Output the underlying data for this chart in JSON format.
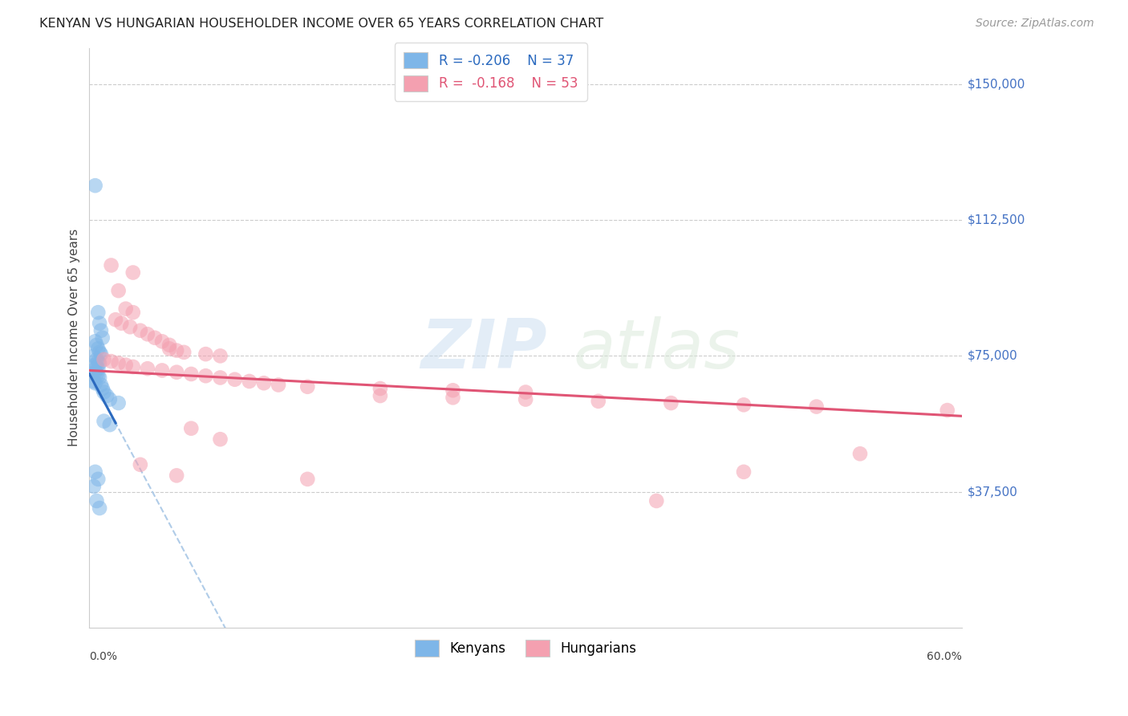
{
  "title": "KENYAN VS HUNGARIAN HOUSEHOLDER INCOME OVER 65 YEARS CORRELATION CHART",
  "source": "Source: ZipAtlas.com",
  "ylabel": "Householder Income Over 65 years",
  "xlim": [
    0.0,
    0.6
  ],
  "ylim": [
    0,
    160000
  ],
  "ytick_vals": [
    37500,
    75000,
    112500,
    150000
  ],
  "ytick_labels": [
    "$37,500",
    "$75,000",
    "$112,500",
    "$150,000"
  ],
  "kenyan_R": "-0.206",
  "kenyan_N": "37",
  "hungarian_R": "-0.168",
  "hungarian_N": "53",
  "kenyan_color": "#7eb6e8",
  "hungarian_color": "#f4a0b0",
  "kenyan_line_color": "#2b6abf",
  "hungarian_line_color": "#e05575",
  "kenyan_dashed_color": "#b0cce8",
  "bg_color": "#ffffff",
  "watermark_text": "ZIPatlas",
  "kenyan_points": [
    [
      0.004,
      122000
    ],
    [
      0.006,
      87000
    ],
    [
      0.007,
      84000
    ],
    [
      0.008,
      82000
    ],
    [
      0.009,
      80000
    ],
    [
      0.004,
      79000
    ],
    [
      0.005,
      78000
    ],
    [
      0.006,
      77000
    ],
    [
      0.007,
      76000
    ],
    [
      0.008,
      75500
    ],
    [
      0.003,
      75000
    ],
    [
      0.005,
      74000
    ],
    [
      0.006,
      73500
    ],
    [
      0.007,
      73000
    ],
    [
      0.004,
      72500
    ],
    [
      0.005,
      72000
    ],
    [
      0.006,
      71500
    ],
    [
      0.003,
      71000
    ],
    [
      0.004,
      70500
    ],
    [
      0.005,
      70000
    ],
    [
      0.006,
      69500
    ],
    [
      0.007,
      69000
    ],
    [
      0.003,
      68000
    ],
    [
      0.004,
      67500
    ],
    [
      0.008,
      67000
    ],
    [
      0.009,
      66000
    ],
    [
      0.01,
      65000
    ],
    [
      0.012,
      64000
    ],
    [
      0.014,
      63000
    ],
    [
      0.02,
      62000
    ],
    [
      0.01,
      57000
    ],
    [
      0.014,
      56000
    ],
    [
      0.004,
      43000
    ],
    [
      0.006,
      41000
    ],
    [
      0.003,
      39000
    ],
    [
      0.005,
      35000
    ],
    [
      0.007,
      33000
    ]
  ],
  "hungarian_points": [
    [
      0.015,
      100000
    ],
    [
      0.02,
      93000
    ],
    [
      0.03,
      98000
    ],
    [
      0.025,
      88000
    ],
    [
      0.03,
      87000
    ],
    [
      0.018,
      85000
    ],
    [
      0.022,
      84000
    ],
    [
      0.028,
      83000
    ],
    [
      0.035,
      82000
    ],
    [
      0.04,
      81000
    ],
    [
      0.045,
      80000
    ],
    [
      0.05,
      79000
    ],
    [
      0.055,
      78000
    ],
    [
      0.055,
      77000
    ],
    [
      0.06,
      76500
    ],
    [
      0.065,
      76000
    ],
    [
      0.08,
      75500
    ],
    [
      0.09,
      75000
    ],
    [
      0.01,
      74000
    ],
    [
      0.015,
      73500
    ],
    [
      0.02,
      73000
    ],
    [
      0.025,
      72500
    ],
    [
      0.03,
      72000
    ],
    [
      0.04,
      71500
    ],
    [
      0.05,
      71000
    ],
    [
      0.06,
      70500
    ],
    [
      0.07,
      70000
    ],
    [
      0.08,
      69500
    ],
    [
      0.09,
      69000
    ],
    [
      0.1,
      68500
    ],
    [
      0.11,
      68000
    ],
    [
      0.12,
      67500
    ],
    [
      0.13,
      67000
    ],
    [
      0.15,
      66500
    ],
    [
      0.2,
      66000
    ],
    [
      0.25,
      65500
    ],
    [
      0.3,
      65000
    ],
    [
      0.2,
      64000
    ],
    [
      0.25,
      63500
    ],
    [
      0.3,
      63000
    ],
    [
      0.35,
      62500
    ],
    [
      0.4,
      62000
    ],
    [
      0.45,
      61500
    ],
    [
      0.5,
      61000
    ],
    [
      0.07,
      55000
    ],
    [
      0.09,
      52000
    ],
    [
      0.035,
      45000
    ],
    [
      0.06,
      42000
    ],
    [
      0.15,
      41000
    ],
    [
      0.45,
      43000
    ],
    [
      0.59,
      60000
    ],
    [
      0.53,
      48000
    ],
    [
      0.39,
      35000
    ]
  ]
}
